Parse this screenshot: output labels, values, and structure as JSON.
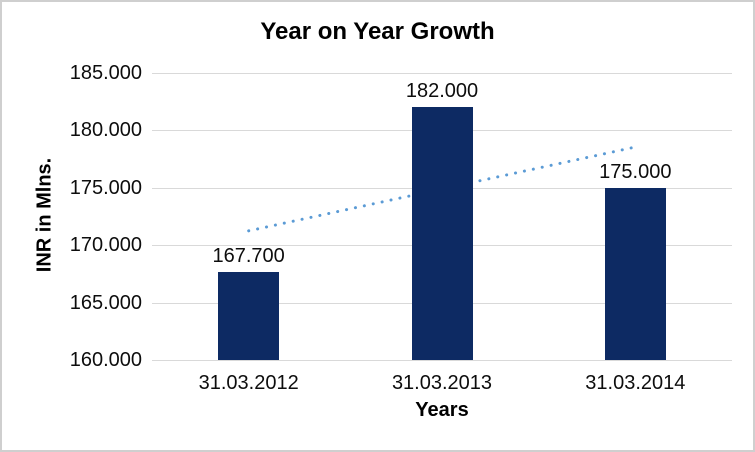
{
  "frame": {
    "background": "#ffffff",
    "border_color": "#cfcfcf"
  },
  "chart_data": {
    "type": "bar",
    "title": "Year on Year Growth",
    "xlabel": "Years",
    "ylabel": "INR in Mlns.",
    "categories": [
      "31.03.2012",
      "31.03.2013",
      "31.03.2014"
    ],
    "values": [
      167.7,
      182.0,
      175.0
    ],
    "data_labels": [
      "167.700",
      "182.000",
      "175.000"
    ],
    "ylim": [
      160,
      185
    ],
    "ytick_labels": [
      "160.000",
      "165.000",
      "170.000",
      "175.000",
      "180.000",
      "185.000"
    ],
    "grid": true,
    "legend": "none",
    "bar_color": "#0d2a63",
    "gridline_color": "#d9d9d9",
    "text_color": "#0d0d0d",
    "trendline": {
      "type": "linear",
      "style": "dotted",
      "color": "#5b9bd5",
      "start_value": 171.25,
      "end_value": 178.55
    }
  }
}
